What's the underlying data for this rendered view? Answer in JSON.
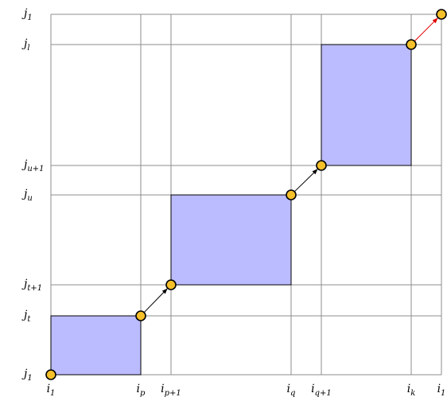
{
  "diagram": {
    "columns": [
      {
        "base": "i",
        "sub": "1"
      },
      {
        "base": "i",
        "sub": "p"
      },
      {
        "base": "i",
        "sub": "p+1"
      },
      {
        "base": "i",
        "sub": "q"
      },
      {
        "base": "i",
        "sub": "q+1"
      },
      {
        "base": "i",
        "sub": "k"
      },
      {
        "base": "i",
        "sub": "1"
      }
    ],
    "rows": [
      {
        "base": "j",
        "sub": "1"
      },
      {
        "base": "j",
        "sub": "t"
      },
      {
        "base": "j",
        "sub": "t+1"
      },
      {
        "base": "j",
        "sub": "u"
      },
      {
        "base": "j",
        "sub": "u+1"
      },
      {
        "base": "j",
        "sub": "l"
      },
      {
        "base": "j",
        "sub": "1"
      }
    ],
    "blocks": [
      {
        "from": [
          0,
          0
        ],
        "to": [
          1,
          1
        ]
      },
      {
        "from": [
          2,
          2
        ],
        "to": [
          3,
          3
        ]
      },
      {
        "from": [
          4,
          4
        ],
        "to": [
          5,
          5
        ]
      }
    ],
    "nodes": [
      [
        0,
        0
      ],
      [
        1,
        1
      ],
      [
        2,
        2
      ],
      [
        3,
        3
      ],
      [
        4,
        4
      ],
      [
        5,
        5
      ],
      [
        6,
        6
      ]
    ],
    "arrows": [
      {
        "from": [
          1,
          1
        ],
        "to": [
          2,
          2
        ],
        "color": "#000000"
      },
      {
        "from": [
          3,
          3
        ],
        "to": [
          4,
          4
        ],
        "color": "#000000"
      },
      {
        "from": [
          5,
          5
        ],
        "to": [
          6,
          6
        ],
        "color": "#e00000"
      }
    ],
    "colors": {
      "block_fill": "#bbbbff",
      "node_fill": "#f5c02a",
      "grid": "#8c8c8c",
      "final_arrow": "#e00000"
    }
  }
}
